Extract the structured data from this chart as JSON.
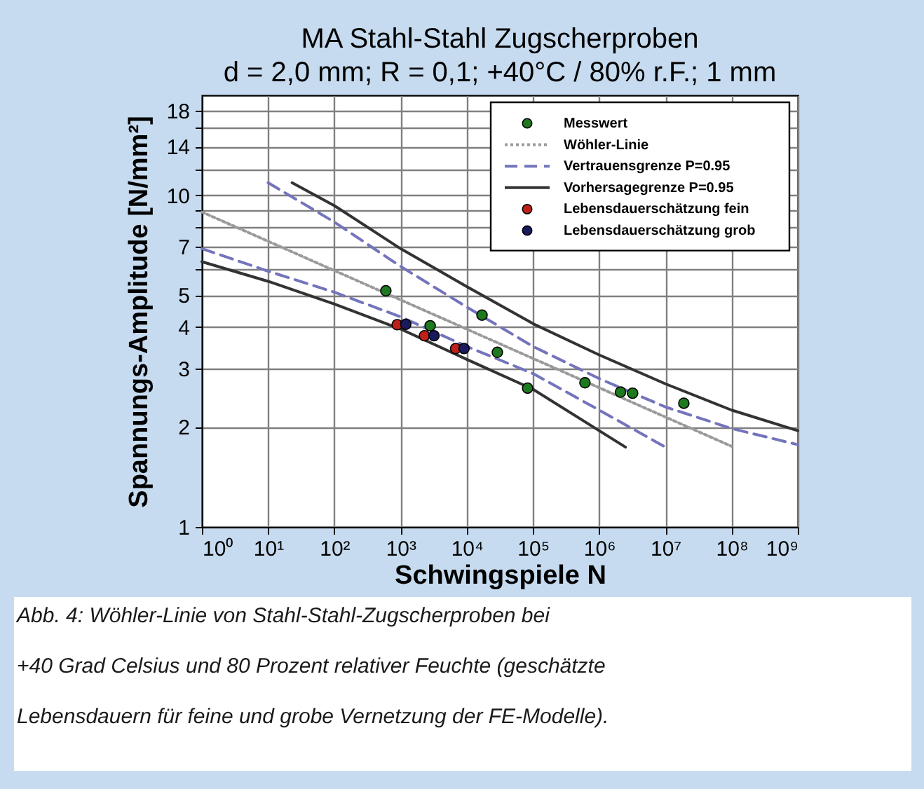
{
  "chart_data": {
    "type": "line",
    "title": "MA Stahl-Stahl Zugscherproben",
    "subtitle": "d = 2,0 mm; R = 0,1; +40°C / 80% r.F.; 1 mm",
    "xlabel": "Schwingspiele N",
    "ylabel": "Spannungs-Amplitude [N/mm²]",
    "log": "xy",
    "grid": true,
    "legend": "top right",
    "xlim": [
      1,
      1000000000
    ],
    "xticks": [
      {
        "value": 1,
        "label": "10⁰"
      },
      {
        "value": 10,
        "label": "10¹"
      },
      {
        "value": 100,
        "label": "10²"
      },
      {
        "value": 1000,
        "label": "10³"
      },
      {
        "value": 10000,
        "label": "10⁴"
      },
      {
        "value": 100000,
        "label": "10⁵"
      },
      {
        "value": 1000000,
        "label": "10⁶"
      },
      {
        "value": 10000000,
        "label": "10⁷"
      },
      {
        "value": 100000000,
        "label": "10⁸"
      },
      {
        "value": 1000000000,
        "label": "10⁹"
      }
    ],
    "ylim": [
      1,
      20
    ],
    "yticks": [
      1,
      2,
      3,
      4,
      5,
      {
        "value": 6,
        "label": null
      },
      7,
      {
        "value": 8,
        "label": null
      },
      {
        "value": 9,
        "label": null
      },
      10,
      {
        "value": 12,
        "label": null
      },
      14,
      {
        "value": 16,
        "label": null
      },
      18
    ],
    "series": [
      {
        "name": "Messwert",
        "type": "scatter",
        "marker": "circle",
        "color": "#1e7a1e",
        "x": [
          600,
          17000,
          2800,
          29000,
          83000,
          610000,
          2100000,
          3200000,
          19000000
        ],
        "values": [
          5.15,
          4.35,
          4.04,
          3.36,
          2.62,
          2.72,
          2.55,
          2.53,
          2.36
        ]
      },
      {
        "name": "Wöhler-Linie",
        "line_style": "dotted",
        "color": "#9a9a9a",
        "x": [
          1,
          100000000
        ],
        "values": [
          8.9,
          1.75
        ]
      },
      {
        "name": "Vertrauensgrenze P=0.95",
        "line_style": "dashed",
        "color": "#7474bc",
        "x": [
          10,
          100,
          1000,
          10000,
          100000,
          1000000,
          10000000,
          100000000,
          1000000000
        ],
        "values": [
          10.9,
          8.3,
          6.1,
          4.6,
          3.5,
          2.8,
          2.3,
          1.98,
          1.77
        ]
      },
      {
        "name": "Vorhersagegrenze P=0.95",
        "line_style": "solid",
        "color": "#333333",
        "x": [
          23,
          100,
          1000,
          10000,
          100000,
          1000000,
          10000000,
          100000000,
          1000000000
        ],
        "values": [
          10.9,
          9.3,
          6.9,
          5.3,
          4.1,
          3.3,
          2.7,
          2.25,
          1.95
        ]
      },
      {
        "name": "Lebensdauerschätzung fein",
        "type": "scatter",
        "marker": "circle",
        "color": "#c0201a",
        "x": [
          890,
          2300,
          6800
        ],
        "values": [
          4.07,
          3.77,
          3.45
        ]
      },
      {
        "name": "Lebensdauerschätzung grob",
        "type": "scatter",
        "marker": "circle",
        "color": "#1a1a5e",
        "x": [
          1200,
          3200,
          9100
        ],
        "values": [
          4.08,
          3.77,
          3.45
        ]
      },
      {
        "line_style": "dashed",
        "color": "#7474bc",
        "x": [
          1,
          10,
          100,
          1000,
          10000,
          100000,
          1000000,
          10000000
        ],
        "values": [
          6.9,
          5.9,
          5.1,
          4.3,
          3.5,
          2.9,
          2.25,
          1.74
        ]
      },
      {
        "line_style": "solid",
        "color": "#333333",
        "x": [
          1,
          10,
          100,
          1000,
          10000,
          100000,
          2500000
        ],
        "values": [
          6.3,
          5.5,
          4.7,
          3.95,
          3.2,
          2.6,
          1.74
        ]
      }
    ],
    "annotations": [
      "Abb. 4: Wöhler-Linie von Stahl-Stahl-Zugscherproben bei",
      "+40 Grad Celsius und 80 Prozent relativer Feuchte (geschätzte",
      "Lebensdauern für feine und grobe Vernetzung der FE-Modelle)."
    ]
  }
}
